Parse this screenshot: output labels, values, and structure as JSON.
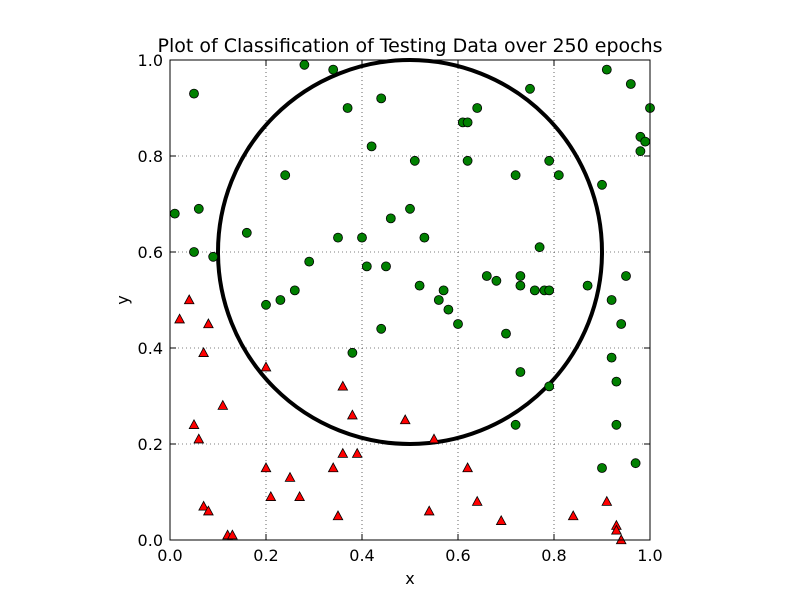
{
  "chart_data": {
    "type": "scatter",
    "title": "Plot of Classification of Testing Data over 250 epochs",
    "xlabel": "x",
    "ylabel": "y",
    "xlim": [
      0.0,
      1.0
    ],
    "ylim": [
      0.0,
      1.0
    ],
    "x_ticks": [
      "0.0",
      "0.2",
      "0.4",
      "0.6",
      "0.8",
      "1.0"
    ],
    "y_ticks": [
      "0.0",
      "0.2",
      "0.4",
      "0.6",
      "0.8",
      "1.0"
    ],
    "x_tick_values": [
      0.0,
      0.2,
      0.4,
      0.6,
      0.8,
      1.0
    ],
    "y_tick_values": [
      0.0,
      0.2,
      0.4,
      0.6,
      0.8,
      1.0
    ],
    "grid": true,
    "circle": {
      "center": [
        0.5,
        0.6
      ],
      "radius": 0.4,
      "color": "#000000"
    },
    "series": [
      {
        "marker": "circle",
        "color": "#008000",
        "points": [
          [
            0.01,
            0.68
          ],
          [
            0.05,
            0.93
          ],
          [
            0.06,
            0.69
          ],
          [
            0.05,
            0.6
          ],
          [
            0.09,
            0.59
          ],
          [
            0.16,
            0.64
          ],
          [
            0.2,
            0.49
          ],
          [
            0.23,
            0.5
          ],
          [
            0.24,
            0.76
          ],
          [
            0.26,
            0.52
          ],
          [
            0.28,
            0.99
          ],
          [
            0.29,
            0.58
          ],
          [
            0.34,
            0.98
          ],
          [
            0.35,
            0.63
          ],
          [
            0.37,
            0.9
          ],
          [
            0.38,
            0.39
          ],
          [
            0.4,
            0.63
          ],
          [
            0.41,
            0.57
          ],
          [
            0.42,
            0.82
          ],
          [
            0.44,
            0.92
          ],
          [
            0.44,
            0.44
          ],
          [
            0.45,
            0.57
          ],
          [
            0.46,
            0.67
          ],
          [
            0.5,
            0.69
          ],
          [
            0.51,
            0.79
          ],
          [
            0.52,
            0.53
          ],
          [
            0.53,
            0.63
          ],
          [
            0.56,
            0.5
          ],
          [
            0.57,
            0.52
          ],
          [
            0.58,
            0.48
          ],
          [
            0.6,
            0.45
          ],
          [
            0.61,
            0.87
          ],
          [
            0.62,
            0.87
          ],
          [
            0.62,
            0.79
          ],
          [
            0.64,
            0.9
          ],
          [
            0.66,
            0.55
          ],
          [
            0.68,
            0.54
          ],
          [
            0.7,
            0.43
          ],
          [
            0.72,
            0.76
          ],
          [
            0.73,
            0.55
          ],
          [
            0.73,
            0.53
          ],
          [
            0.73,
            0.35
          ],
          [
            0.72,
            0.24
          ],
          [
            0.75,
            0.94
          ],
          [
            0.76,
            0.52
          ],
          [
            0.77,
            0.61
          ],
          [
            0.78,
            0.52
          ],
          [
            0.79,
            0.52
          ],
          [
            0.79,
            0.79
          ],
          [
            0.79,
            0.32
          ],
          [
            0.81,
            0.76
          ],
          [
            0.87,
            0.53
          ],
          [
            0.9,
            0.74
          ],
          [
            0.9,
            0.15
          ],
          [
            0.91,
            0.98
          ],
          [
            0.92,
            0.5
          ],
          [
            0.92,
            0.38
          ],
          [
            0.93,
            0.33
          ],
          [
            0.93,
            0.24
          ],
          [
            0.94,
            0.45
          ],
          [
            0.95,
            0.55
          ],
          [
            0.96,
            0.95
          ],
          [
            0.97,
            0.16
          ],
          [
            0.98,
            0.84
          ],
          [
            0.98,
            0.81
          ],
          [
            0.99,
            0.83
          ],
          [
            1.0,
            0.9
          ]
        ]
      },
      {
        "marker": "triangle",
        "color": "#ff0000",
        "points": [
          [
            0.02,
            0.46
          ],
          [
            0.04,
            0.5
          ],
          [
            0.05,
            0.24
          ],
          [
            0.06,
            0.21
          ],
          [
            0.07,
            0.39
          ],
          [
            0.07,
            0.07
          ],
          [
            0.08,
            0.06
          ],
          [
            0.08,
            0.45
          ],
          [
            0.11,
            0.28
          ],
          [
            0.12,
            0.01
          ],
          [
            0.13,
            0.01
          ],
          [
            0.2,
            0.36
          ],
          [
            0.2,
            0.15
          ],
          [
            0.21,
            0.09
          ],
          [
            0.25,
            0.13
          ],
          [
            0.27,
            0.09
          ],
          [
            0.34,
            0.15
          ],
          [
            0.35,
            0.05
          ],
          [
            0.36,
            0.32
          ],
          [
            0.36,
            0.18
          ],
          [
            0.38,
            0.26
          ],
          [
            0.39,
            0.18
          ],
          [
            0.49,
            0.25
          ],
          [
            0.54,
            0.06
          ],
          [
            0.55,
            0.21
          ],
          [
            0.62,
            0.15
          ],
          [
            0.64,
            0.08
          ],
          [
            0.69,
            0.04
          ],
          [
            0.84,
            0.05
          ],
          [
            0.91,
            0.08
          ],
          [
            0.93,
            0.03
          ],
          [
            0.93,
            0.02
          ],
          [
            0.94,
            0.0
          ]
        ]
      }
    ]
  }
}
